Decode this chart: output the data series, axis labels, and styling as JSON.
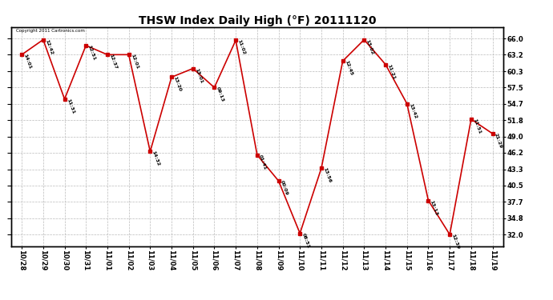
{
  "title": "THSW Index Daily High (°F) 20111120",
  "x_labels": [
    "10/28",
    "10/29",
    "10/30",
    "10/31",
    "11/01",
    "11/02",
    "11/03",
    "11/04",
    "11/05",
    "11/06",
    "11/07",
    "11/08",
    "11/09",
    "11/10",
    "11/11",
    "11/12",
    "11/13",
    "11/14",
    "11/15",
    "11/16",
    "11/17",
    "11/18",
    "11/19"
  ],
  "y_values": [
    63.2,
    65.8,
    55.5,
    64.8,
    63.2,
    63.2,
    46.4,
    59.3,
    60.8,
    57.5,
    65.7,
    45.8,
    41.3,
    32.2,
    43.5,
    62.1,
    65.8,
    61.5,
    54.7,
    37.9,
    32.0,
    52.0,
    49.5
  ],
  "time_labels": [
    "14:01",
    "12:42",
    "11:31",
    "12:51",
    "12:37",
    "12:01",
    "14:32",
    "13:20",
    "13:01",
    "09:13",
    "11:02",
    "01:41",
    "00:09",
    "08:51",
    "13:56",
    "12:45",
    "13:02",
    "11:21",
    "13:42",
    "13:13",
    "12:39",
    "11:51",
    "21:29"
  ],
  "line_color": "#cc0000",
  "marker_color": "#cc0000",
  "background_color": "#ffffff",
  "grid_color": "#bbbbbb",
  "yticks": [
    32.0,
    34.8,
    37.7,
    40.5,
    43.3,
    46.2,
    49.0,
    51.8,
    54.7,
    57.5,
    60.3,
    63.2,
    66.0
  ],
  "copyright_text": "Copyright 2011 Cartronics.com",
  "title_fontsize": 10,
  "tick_fontsize": 6,
  "label_fontsize": 5,
  "ylim_low": 30.0,
  "ylim_high": 68.0
}
